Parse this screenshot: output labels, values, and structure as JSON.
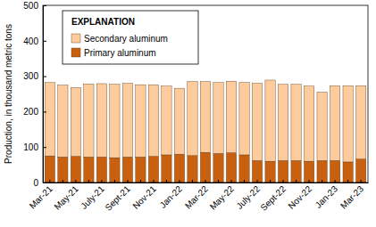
{
  "chart_data": {
    "type": "bar",
    "stacked": true,
    "y_label": "Production, in thousand metric tons",
    "legend_title": "EXPLANATION",
    "legend": "upper left",
    "categories": [
      "Mar-21",
      null,
      "May-21",
      null,
      "July-21",
      null,
      "Sept-21",
      null,
      "Nov-21",
      null,
      "Jan-22",
      null,
      "Mar-22",
      null,
      "May-22",
      null,
      "July-22",
      null,
      "Sept-22",
      null,
      "Nov-22",
      null,
      "Jan-23",
      null,
      "Mar-23"
    ],
    "series": [
      {
        "name": "Secondary aluminum",
        "color": "#fdcb9c",
        "values": [
          207,
          203,
          194,
          206,
          207,
          207,
          208,
          204,
          202,
          194,
          186,
          209,
          200,
          200,
          202,
          204,
          218,
          229,
          215,
          215,
          212,
          193,
          211,
          215,
          207
        ]
      },
      {
        "name": "Primary aluminum",
        "color": "#c8600f",
        "values": [
          75,
          72,
          74,
          72,
          72,
          70,
          72,
          72,
          74,
          78,
          80,
          76,
          85,
          82,
          84,
          78,
          62,
          60,
          62,
          62,
          60,
          62,
          62,
          58,
          66
        ]
      }
    ],
    "ylim": [
      0,
      500
    ],
    "yticks": [
      0,
      100,
      200,
      300,
      400,
      500
    ]
  }
}
